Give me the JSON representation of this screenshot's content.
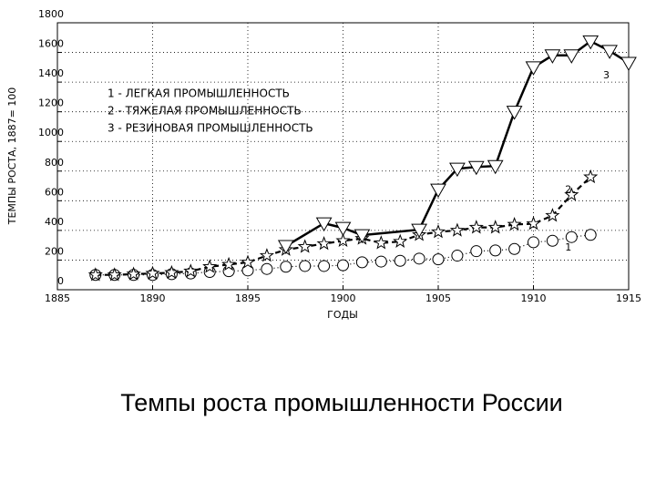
{
  "chart_data": {
    "type": "line",
    "ylabel": "ТЕМПЫ РОСТА, 1887= 100",
    "xlabel": "ГОДЫ",
    "caption": "Темпы роста промышленности России",
    "xlim": [
      1885,
      1915
    ],
    "xticks": [
      1885,
      1890,
      1895,
      1900,
      1905,
      1910,
      1915
    ],
    "ylim": [
      0,
      1800
    ],
    "yticks": [
      0,
      200,
      400,
      600,
      800,
      1000,
      1200,
      1400,
      1600,
      1800
    ],
    "grid": true,
    "series": [
      {
        "name": "1 - ЛЕГКАЯ ПРОМЫШЛЕННОСТЬ",
        "end_label": "1",
        "marker": "circle",
        "line": "dotted",
        "color": "#000000",
        "x": [
          1887,
          1888,
          1889,
          1890,
          1891,
          1892,
          1893,
          1894,
          1895,
          1896,
          1897,
          1898,
          1899,
          1900,
          1901,
          1902,
          1903,
          1904,
          1905,
          1906,
          1907,
          1908,
          1909,
          1910,
          1911,
          1912,
          1913
        ],
        "values": [
          100,
          100,
          100,
          100,
          105,
          110,
          120,
          125,
          130,
          140,
          155,
          160,
          160,
          165,
          185,
          190,
          195,
          210,
          205,
          230,
          260,
          265,
          275,
          320,
          330,
          355,
          370
        ]
      },
      {
        "name": "2 - ТЯЖЕЛАЯ ПРОМЫШЛЕННОСТЬ",
        "end_label": "2",
        "marker": "star",
        "line": "dashed",
        "color": "#000000",
        "x": [
          1887,
          1888,
          1889,
          1890,
          1891,
          1892,
          1893,
          1894,
          1895,
          1896,
          1897,
          1898,
          1899,
          1900,
          1901,
          1902,
          1903,
          1904,
          1905,
          1906,
          1907,
          1908,
          1909,
          1910,
          1911,
          1912,
          1913
        ],
        "values": [
          100,
          100,
          105,
          110,
          115,
          125,
          155,
          170,
          185,
          230,
          270,
          290,
          310,
          330,
          345,
          315,
          325,
          370,
          390,
          400,
          420,
          420,
          440,
          445,
          500,
          640,
          760
        ]
      },
      {
        "name": "3 - РЕЗИНОВАЯ ПРОМЫШЛЕННОСТЬ",
        "end_label": "3",
        "marker": "triangle",
        "line": "solid",
        "color": "#000000",
        "x": [
          1897,
          1899,
          1900,
          1901,
          1904,
          1905,
          1906,
          1907,
          1908,
          1909,
          1910,
          1911,
          1912,
          1913,
          1914,
          1915
        ],
        "values": [
          295,
          448,
          417,
          368,
          405,
          675,
          816,
          828,
          834,
          1200,
          1500,
          1580,
          1580,
          1675,
          1610,
          1530
        ]
      }
    ]
  }
}
